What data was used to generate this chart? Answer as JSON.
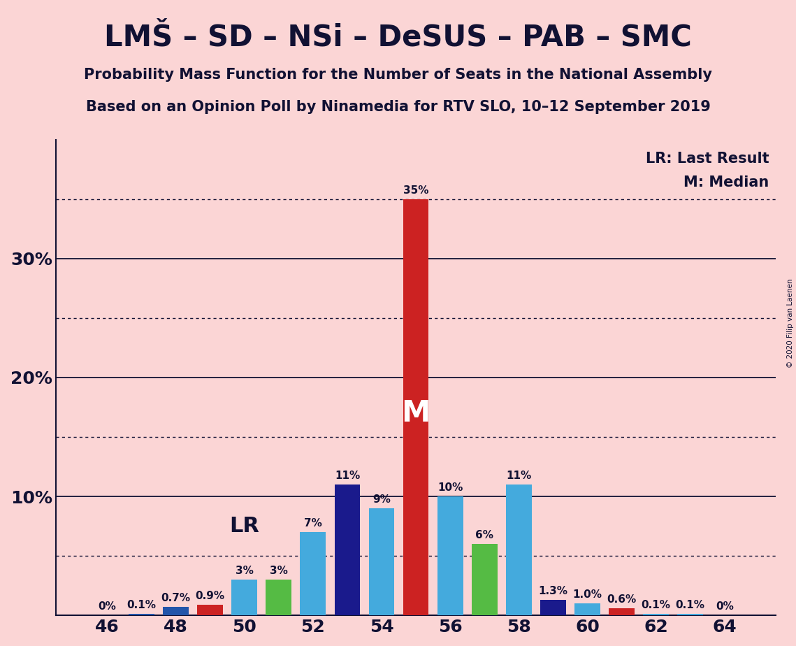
{
  "title": "LMŠ – SD – NSi – DeSUS – PAB – SMC",
  "subtitle1": "Probability Mass Function for the Number of Seats in the National Assembly",
  "subtitle2": "Based on an Opinion Poll by Ninamedia for RTV SLO, 10–12 September 2019",
  "copyright": "© 2020 Filip van Laenen",
  "legend_lr": "LR: Last Result",
  "legend_m": "M: Median",
  "background_color": "#fbd5d5",
  "bar_data": [
    {
      "seat": 46,
      "value": 0.0,
      "color": "#fbd5d5",
      "label": "0%"
    },
    {
      "seat": 47,
      "value": 0.001,
      "color": "#2255aa",
      "label": "0.1%"
    },
    {
      "seat": 48,
      "value": 0.0,
      "color": "#fbd5d5",
      "label": ""
    },
    {
      "seat": 48,
      "value": 0.007,
      "color": "#2255aa",
      "label": "0.7%"
    },
    {
      "seat": 49,
      "value": 0.009,
      "color": "#cc2222",
      "label": "0.9%"
    },
    {
      "seat": 50,
      "value": 0.03,
      "color": "#44aadd",
      "label": "3%"
    },
    {
      "seat": 51,
      "value": 0.03,
      "color": "#55bb44",
      "label": "3%"
    },
    {
      "seat": 52,
      "value": 0.07,
      "color": "#44aadd",
      "label": "7%"
    },
    {
      "seat": 53,
      "value": 0.11,
      "color": "#1a1a8c",
      "label": "11%"
    },
    {
      "seat": 54,
      "value": 0.09,
      "color": "#44aadd",
      "label": "9%"
    },
    {
      "seat": 55,
      "value": 0.35,
      "color": "#cc2222",
      "label": "35%"
    },
    {
      "seat": 56,
      "value": 0.1,
      "color": "#44aadd",
      "label": "10%"
    },
    {
      "seat": 57,
      "value": 0.06,
      "color": "#55bb44",
      "label": "6%"
    },
    {
      "seat": 58,
      "value": 0.11,
      "color": "#44aadd",
      "label": "11%"
    },
    {
      "seat": 59,
      "value": 0.013,
      "color": "#1a1a8c",
      "label": "1.3%"
    },
    {
      "seat": 60,
      "value": 0.01,
      "color": "#44aadd",
      "label": "1.0%"
    },
    {
      "seat": 61,
      "value": 0.006,
      "color": "#cc2222",
      "label": "0.6%"
    },
    {
      "seat": 62,
      "value": 0.001,
      "color": "#44aadd",
      "label": "0.1%"
    },
    {
      "seat": 63,
      "value": 0.001,
      "color": "#44aadd",
      "label": "0.1%"
    },
    {
      "seat": 64,
      "value": 0.0,
      "color": "#fbd5d5",
      "label": "0%"
    }
  ],
  "xlim": [
    44.5,
    65.5
  ],
  "ylim": [
    0,
    0.4
  ],
  "ytick_values": [
    0.0,
    0.1,
    0.2,
    0.3
  ],
  "ytick_labels": [
    "",
    "10%",
    "20%",
    "30%"
  ],
  "dotted_yticks": [
    0.05,
    0.15,
    0.25,
    0.35
  ],
  "xtick_positions": [
    46,
    48,
    50,
    52,
    54,
    56,
    58,
    60,
    62,
    64
  ],
  "median_seat": 55,
  "lr_seat": 49,
  "bar_width": 0.75,
  "title_fontsize": 30,
  "subtitle_fontsize": 15,
  "bar_label_fontsize": 11,
  "axis_tick_fontsize": 18,
  "legend_fontsize": 15
}
